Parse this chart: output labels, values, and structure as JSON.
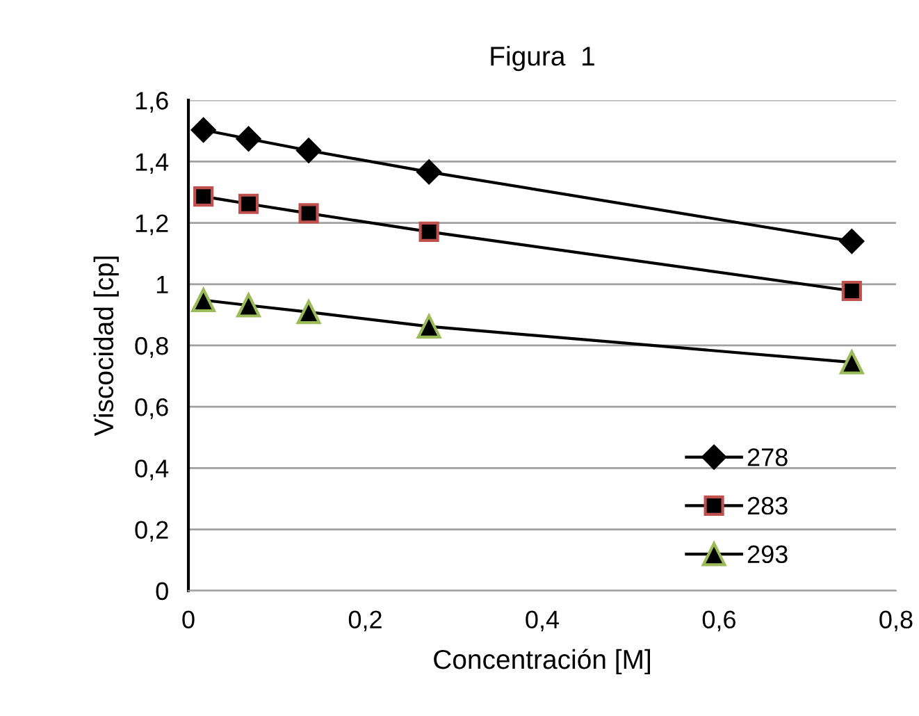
{
  "chart_data": {
    "type": "line",
    "title": "Figura  1",
    "xlabel": "Concentración [M]",
    "ylabel": "Viscocidad [cp]",
    "x": [
      0.017,
      0.068,
      0.136,
      0.272,
      0.75
    ],
    "series": [
      {
        "name": "278",
        "color": "#000000",
        "marker": "diamond",
        "values": [
          1.503,
          1.474,
          1.436,
          1.366,
          1.14
        ]
      },
      {
        "name": "283",
        "color": "#000000",
        "marker": "square",
        "values": [
          1.286,
          1.262,
          1.231,
          1.171,
          0.978
        ]
      },
      {
        "name": "293",
        "color": "#000000",
        "marker": "triangle",
        "values": [
          0.948,
          0.931,
          0.909,
          0.862,
          0.745
        ]
      }
    ],
    "xlim": [
      0,
      0.8
    ],
    "xticks": [
      {
        "value": 0,
        "label": "0"
      },
      {
        "value": 0.2,
        "label": "0,2"
      },
      {
        "value": 0.4,
        "label": "0,4"
      },
      {
        "value": 0.6,
        "label": "0,6"
      },
      {
        "value": 0.8,
        "label": "0,8"
      }
    ],
    "ylim": [
      0,
      1.6
    ],
    "yticks": [
      {
        "value": 0,
        "label": "0"
      },
      {
        "value": 0.2,
        "label": "0,2"
      },
      {
        "value": 0.4,
        "label": "0,4"
      },
      {
        "value": 0.6,
        "label": "0,6"
      },
      {
        "value": 0.8,
        "label": "0,8"
      },
      {
        "value": 1,
        "label": "1"
      },
      {
        "value": 1.2,
        "label": "1,2"
      },
      {
        "value": 1.4,
        "label": "1,4"
      },
      {
        "value": 1.6,
        "label": "1,6"
      }
    ],
    "grid": "y",
    "legend": "bottom right",
    "line_style": "solid"
  }
}
